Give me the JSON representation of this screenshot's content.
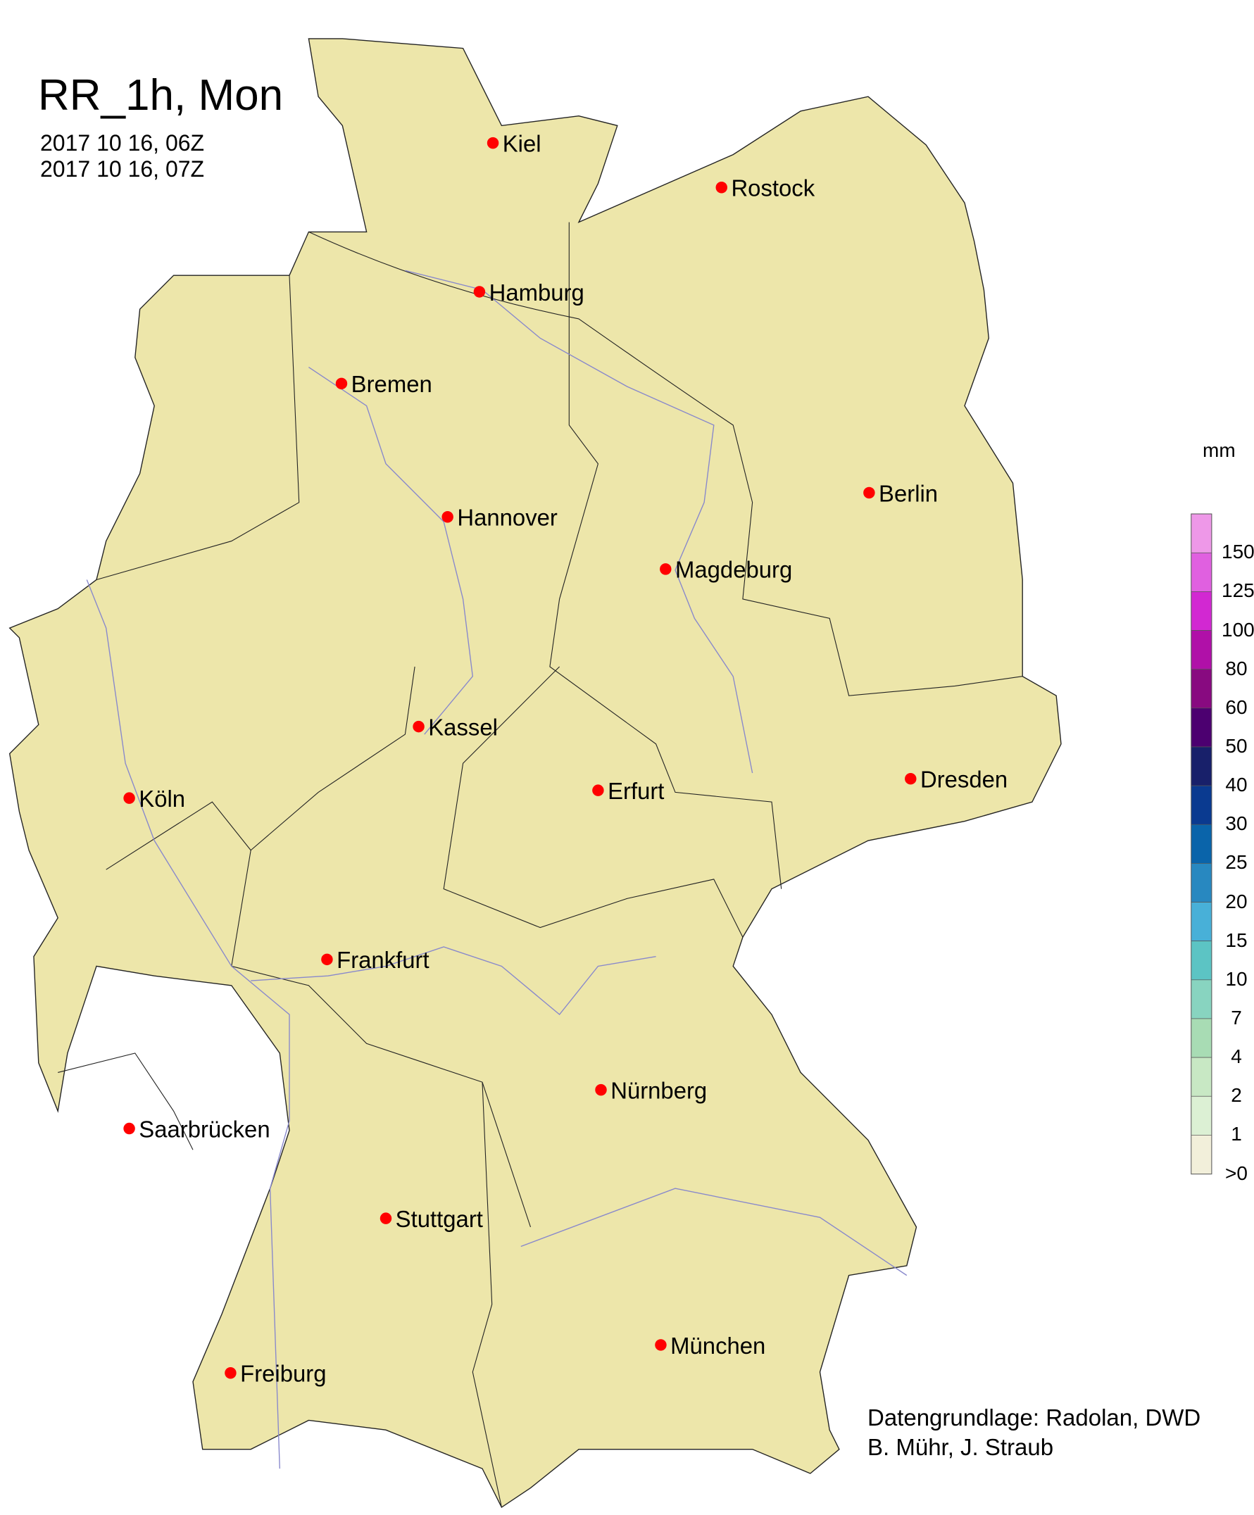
{
  "title": "RR_1h, Mon",
  "period_start": "2017 10 16, 06Z",
  "period_end": "2017 10 16, 07Z",
  "credits": [
    "Datengrundlage: Radolan, DWD",
    "B. Mühr, J. Straub"
  ],
  "colors": {
    "land": "#ede6aa",
    "border": "#000000",
    "river": "#8888cc",
    "city_marker": "#ff0000",
    "light_rain": "#f3f0dc"
  },
  "cities": [
    "Kiel",
    "Rostock",
    "Hamburg",
    "Bremen",
    "Berlin",
    "Hannover",
    "Magdeburg",
    "Kassel",
    "Dresden",
    "Köln",
    "Erfurt",
    "Frankfurt",
    "Nürnberg",
    "Saarbrücken",
    "Stuttgart",
    "München",
    "Freiburg"
  ],
  "legend": {
    "unit": "mm",
    "labels": [
      "150",
      "125",
      "100",
      "80",
      "60",
      "50",
      "40",
      "30",
      "25",
      "20",
      "15",
      "10",
      "7",
      "4",
      "2",
      "1",
      ">0"
    ],
    "colors": [
      "#ee98e8",
      "#e060e0",
      "#d228d2",
      "#b010a8",
      "#880a80",
      "#4c0070",
      "#18206a",
      "#0a3a90",
      "#0a64aa",
      "#2888c0",
      "#48b0d8",
      "#5cc4c4",
      "#88d4c0",
      "#a8dcb4",
      "#c8e8c4",
      "#dcf0d4",
      "#f2efda"
    ]
  }
}
